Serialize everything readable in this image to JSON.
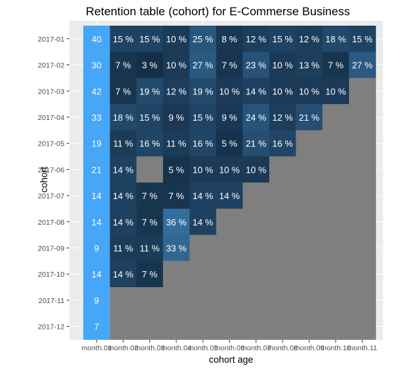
{
  "chart_data": {
    "type": "heatmap",
    "title": "Retention table (cohort) for E-Commerse Business",
    "xlabel": "cohort age",
    "ylabel": "cohort",
    "x_categories": [
      "month.01",
      "month.02",
      "month.03",
      "month.04",
      "month.05",
      "month.06",
      "month.07",
      "month.08",
      "month.09",
      "month.10",
      "month.11"
    ],
    "y_categories": [
      "2017-01",
      "2017-02",
      "2017-03",
      "2017-04",
      "2017-05",
      "2017-06",
      "2017-07",
      "2017-08",
      "2017-09",
      "2017-10",
      "2017-11",
      "2017-12"
    ],
    "first_column_label": "month.01",
    "rows": [
      {
        "cohort": "2017-01",
        "month01": 40,
        "values": [
          15,
          15,
          10,
          25,
          8,
          12,
          15,
          12,
          18,
          15
        ]
      },
      {
        "cohort": "2017-02",
        "month01": 30,
        "values": [
          7,
          3,
          10,
          27,
          7,
          23,
          10,
          13,
          7,
          27
        ]
      },
      {
        "cohort": "2017-03",
        "month01": 42,
        "values": [
          7,
          19,
          12,
          19,
          10,
          14,
          10,
          10,
          10
        ]
      },
      {
        "cohort": "2017-04",
        "month01": 33,
        "values": [
          18,
          15,
          9,
          15,
          9,
          24,
          12,
          21
        ]
      },
      {
        "cohort": "2017-05",
        "month01": 19,
        "values": [
          11,
          16,
          11,
          16,
          5,
          21,
          16
        ]
      },
      {
        "cohort": "2017-06",
        "month01": 21,
        "values": [
          14,
          null,
          5,
          10,
          10,
          10
        ]
      },
      {
        "cohort": "2017-07",
        "month01": 14,
        "values": [
          14,
          7,
          7,
          14,
          14
        ]
      },
      {
        "cohort": "2017-08",
        "month01": 14,
        "values": [
          14,
          7,
          36,
          14
        ]
      },
      {
        "cohort": "2017-09",
        "month01": 9,
        "values": [
          11,
          11,
          33
        ]
      },
      {
        "cohort": "2017-10",
        "month01": 14,
        "values": [
          14,
          7
        ]
      },
      {
        "cohort": "2017-11",
        "month01": 9,
        "values": []
      },
      {
        "cohort": "2017-12",
        "month01": 7,
        "values": []
      }
    ],
    "value_suffix": " %",
    "value_range": [
      0,
      40
    ],
    "colors": {
      "first_column": "#46a6f8",
      "scale_low": "#132b43",
      "scale_high": "#56b1f7",
      "missing": "#7f7f7f",
      "panel_background": "#ebebeb",
      "grid": "#ffffff"
    },
    "grid": true,
    "legend": "none"
  }
}
